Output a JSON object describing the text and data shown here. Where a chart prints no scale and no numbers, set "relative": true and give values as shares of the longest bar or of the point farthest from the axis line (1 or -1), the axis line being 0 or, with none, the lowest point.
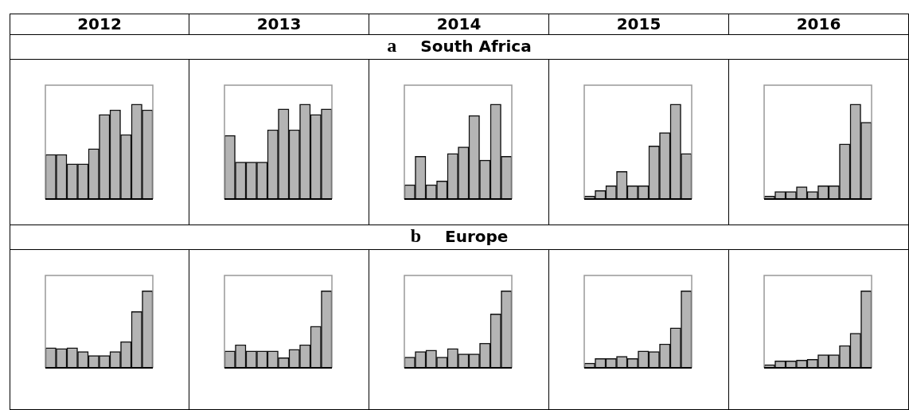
{
  "chart_data": [
    {
      "type": "other",
      "title": "South Africa",
      "annotations": [
        "a"
      ]
    },
    {
      "type": "bar",
      "title": "2012",
      "relative": true,
      "categories": [
        null,
        null,
        null,
        null,
        null,
        null,
        null,
        null,
        null,
        null
      ],
      "color": "#b4b4b4",
      "values": [
        0.47,
        0.47,
        0.37,
        0.37,
        0.53,
        0.89,
        0.94,
        0.68,
        1,
        0.94
      ]
    },
    {
      "type": "bar",
      "title": "2013",
      "relative": true,
      "categories": [
        null,
        null,
        null,
        null,
        null,
        null,
        null,
        null,
        null,
        null
      ],
      "color": "#b4b4b4",
      "values": [
        0.67,
        0.39,
        0.39,
        0.39,
        0.73,
        0.95,
        0.73,
        1,
        0.89,
        0.95
      ]
    },
    {
      "type": "bar",
      "title": "2014",
      "relative": true,
      "categories": [
        null,
        null,
        null,
        null,
        null,
        null,
        null,
        null,
        null,
        null
      ],
      "color": "#b4b4b4",
      "values": [
        0.15,
        0.45,
        0.15,
        0.19,
        0.48,
        0.55,
        0.88,
        0.41,
        1,
        0.45
      ]
    },
    {
      "type": "bar",
      "title": "2015",
      "relative": true,
      "categories": [
        null,
        null,
        null,
        null,
        null,
        null,
        null,
        null,
        null,
        null
      ],
      "color": "#b4b4b4",
      "values": [
        0.03,
        0.09,
        0.14,
        0.29,
        0.14,
        0.14,
        0.56,
        0.7,
        1,
        0.48
      ]
    },
    {
      "type": "bar",
      "title": "2016",
      "relative": true,
      "categories": [
        null,
        null,
        null,
        null,
        null,
        null,
        null,
        null,
        null,
        null
      ],
      "color": "#b4b4b4",
      "values": [
        0.03,
        0.08,
        0.08,
        0.13,
        0.08,
        0.14,
        0.14,
        0.58,
        1,
        0.81
      ]
    },
    {
      "type": "other",
      "title": "Europe",
      "annotations": [
        "b"
      ]
    },
    {
      "type": "bar",
      "relative": true,
      "categories": [
        null,
        null,
        null,
        null,
        null,
        null,
        null,
        null,
        null,
        null
      ],
      "color": "#b4b4b4",
      "values": [
        0.26,
        0.25,
        0.26,
        0.21,
        0.16,
        0.16,
        0.21,
        0.34,
        0.73,
        1
      ]
    },
    {
      "type": "bar",
      "relative": true,
      "categories": [
        null,
        null,
        null,
        null,
        null,
        null,
        null,
        null,
        null,
        null
      ],
      "color": "#b4b4b4",
      "values": [
        0.22,
        0.3,
        0.22,
        0.22,
        0.22,
        0.13,
        0.24,
        0.3,
        0.54,
        1
      ]
    },
    {
      "type": "bar",
      "relative": true,
      "categories": [
        null,
        null,
        null,
        null,
        null,
        null,
        null,
        null,
        null,
        null
      ],
      "color": "#b4b4b4",
      "values": [
        0.14,
        0.21,
        0.23,
        0.14,
        0.25,
        0.18,
        0.18,
        0.32,
        0.7,
        1
      ]
    },
    {
      "type": "bar",
      "relative": true,
      "categories": [
        null,
        null,
        null,
        null,
        null,
        null,
        null,
        null,
        null,
        null
      ],
      "color": "#b4b4b4",
      "values": [
        0.06,
        0.12,
        0.12,
        0.15,
        0.12,
        0.22,
        0.21,
        0.31,
        0.52,
        1
      ]
    },
    {
      "type": "bar",
      "relative": true,
      "categories": [
        null,
        null,
        null,
        null,
        null,
        null,
        null,
        null,
        null,
        null
      ],
      "color": "#b4b4b4",
      "values": [
        0.04,
        0.09,
        0.09,
        0.1,
        0.11,
        0.17,
        0.17,
        0.29,
        0.45,
        1
      ]
    }
  ]
}
